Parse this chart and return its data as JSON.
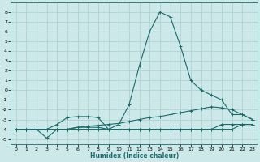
{
  "xlabel": "Humidex (Indice chaleur)",
  "xlim": [
    -0.5,
    23.5
  ],
  "ylim": [
    -5.5,
    9.0
  ],
  "yticks": [
    -5,
    -4,
    -3,
    -2,
    -1,
    0,
    1,
    2,
    3,
    4,
    5,
    6,
    7,
    8
  ],
  "xticks": [
    0,
    1,
    2,
    3,
    4,
    5,
    6,
    7,
    8,
    9,
    10,
    11,
    12,
    13,
    14,
    15,
    16,
    17,
    18,
    19,
    20,
    21,
    22,
    23
  ],
  "bg_color": "#cce8e8",
  "line_color": "#1a6b6b",
  "grid_color": "#aacece",
  "series": [
    {
      "x": [
        0,
        1,
        2,
        3,
        4,
        5,
        6,
        7,
        8,
        9,
        10,
        11,
        12,
        13,
        14,
        15,
        16,
        17,
        18,
        19,
        20,
        21,
        22,
        23
      ],
      "y": [
        -4,
        -4,
        -4,
        -4,
        -4,
        -4,
        -4,
        -4,
        -4,
        -4,
        -3.5,
        -1.5,
        2.5,
        6,
        8,
        7.5,
        4.5,
        1,
        0,
        -0.5,
        -1,
        -2.5,
        -2.5,
        -3
      ]
    },
    {
      "x": [
        0,
        1,
        2,
        3,
        4,
        5,
        6,
        7,
        8,
        9,
        10,
        11,
        12,
        13,
        14,
        15,
        16,
        17,
        18,
        19,
        20,
        21,
        22,
        23
      ],
      "y": [
        -4,
        -4,
        -4,
        -4,
        -4,
        -4,
        -3.8,
        -3.7,
        -3.6,
        -3.5,
        -3.4,
        -3.2,
        -3,
        -2.8,
        -2.7,
        -2.5,
        -2.3,
        -2.1,
        -1.9,
        -1.7,
        -1.8,
        -2,
        -2.5,
        -3
      ]
    },
    {
      "x": [
        0,
        1,
        2,
        3,
        4,
        5,
        6,
        7,
        8,
        9,
        10,
        11,
        12,
        13,
        14,
        15,
        16,
        17,
        18,
        19,
        20,
        21,
        22,
        23
      ],
      "y": [
        -4,
        -4,
        -4,
        -4.9,
        -4,
        -4,
        -3.8,
        -3.8,
        -3.8,
        -4,
        -4,
        -4,
        -4,
        -4,
        -4,
        -4,
        -4,
        -4,
        -4,
        -4,
        -4,
        -4,
        -3.5,
        -3.5
      ]
    },
    {
      "x": [
        0,
        1,
        2,
        3,
        4,
        5,
        6,
        7,
        8,
        9,
        10,
        11,
        12,
        13,
        14,
        15,
        16,
        17,
        18,
        19,
        20,
        21,
        22,
        23
      ],
      "y": [
        -4,
        -4,
        -4,
        -4,
        -3.5,
        -2.8,
        -2.7,
        -2.7,
        -2.8,
        -4,
        -4,
        -4,
        -4,
        -4,
        -4,
        -4,
        -4,
        -4,
        -4,
        -4,
        -3.5,
        -3.5,
        -3.5,
        -3.5
      ]
    }
  ]
}
